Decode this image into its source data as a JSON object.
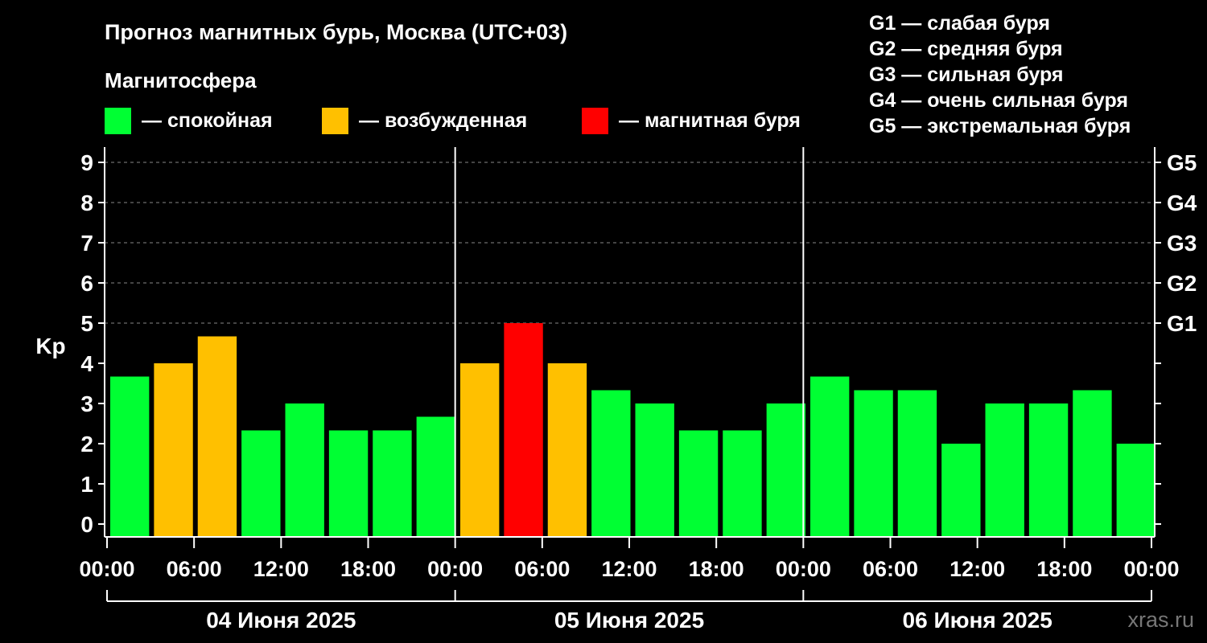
{
  "chart_data": {
    "type": "bar",
    "title": "Прогноз магнитных бурь, Москва (UTC+03)",
    "ylabel": "Kp",
    "ylim": [
      0,
      9
    ],
    "y_ticks": [
      "0",
      "1",
      "2",
      "3",
      "4",
      "5",
      "6",
      "7",
      "8",
      "9"
    ],
    "g_levels": [
      {
        "label": "G1",
        "kp": 5
      },
      {
        "label": "G2",
        "kp": 6
      },
      {
        "label": "G3",
        "kp": 7
      },
      {
        "label": "G4",
        "kp": 8
      },
      {
        "label": "G5",
        "kp": 9
      }
    ],
    "x_tick_labels": [
      "00:00",
      "06:00",
      "12:00",
      "18:00",
      "00:00",
      "06:00",
      "12:00",
      "18:00",
      "00:00",
      "06:00",
      "12:00",
      "18:00",
      "00:00"
    ],
    "days": [
      "04 Июня 2025",
      "05 Июня 2025",
      "06 Июня 2025"
    ],
    "values": [
      3.67,
      4.0,
      4.67,
      2.33,
      3.0,
      2.33,
      2.33,
      2.67,
      4.0,
      5.0,
      4.0,
      3.33,
      3.0,
      2.33,
      2.33,
      3.0,
      3.67,
      3.33,
      3.33,
      2.0,
      3.0,
      3.0,
      3.33,
      2.0
    ],
    "states": [
      "quiet",
      "active",
      "active",
      "quiet",
      "quiet",
      "quiet",
      "quiet",
      "quiet",
      "active",
      "storm",
      "active",
      "quiet",
      "quiet",
      "quiet",
      "quiet",
      "quiet",
      "quiet",
      "quiet",
      "quiet",
      "quiet",
      "quiet",
      "quiet",
      "quiet",
      "quiet"
    ],
    "colors": {
      "quiet": "#00ff33",
      "active": "#ffc000",
      "storm": "#ff0000"
    },
    "grid": true
  },
  "legend": {
    "heading": "Магнитосфера",
    "items": [
      {
        "key": "quiet",
        "label": "— спокойная"
      },
      {
        "key": "active",
        "label": "— возбужденная"
      },
      {
        "key": "storm",
        "label": "— магнитная буря"
      }
    ]
  },
  "g_legend": [
    "G1 — слабая буря",
    "G2 — средняя буря",
    "G3 — сильная буря",
    "G4 — очень сильная буря",
    "G5 — экстремальная буря"
  ],
  "watermark": "xras.ru"
}
